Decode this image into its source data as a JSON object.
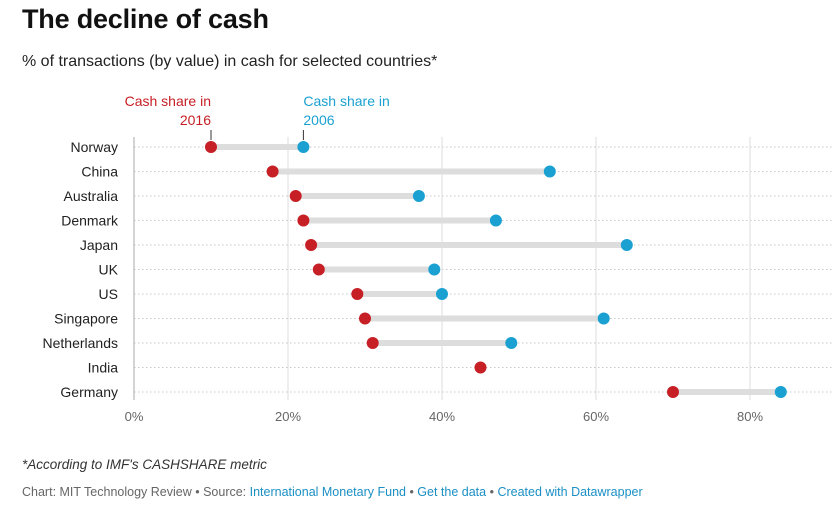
{
  "header": {
    "title": "The decline of cash",
    "subtitle": "% of transactions (by value) in cash for selected countries*"
  },
  "chart_data": {
    "type": "dot",
    "categories": [
      "Norway",
      "China",
      "Australia",
      "Denmark",
      "Japan",
      "UK",
      "US",
      "Singapore",
      "Netherlands",
      "India",
      "Germany"
    ],
    "series": [
      {
        "name": "Cash share in 2016",
        "color": "#c62026",
        "values": [
          10,
          18,
          21,
          22,
          23,
          24,
          29,
          30,
          31,
          45,
          70
        ]
      },
      {
        "name": "Cash share in 2006",
        "color": "#1aa1d1",
        "values": [
          22,
          54,
          37,
          47,
          64,
          39,
          40,
          61,
          49,
          null,
          84
        ]
      }
    ],
    "xlim": [
      0,
      90
    ],
    "xticks": [
      0,
      20,
      40,
      60,
      80
    ],
    "xtick_labels": [
      "0%",
      "20%",
      "40%",
      "60%",
      "80%"
    ],
    "annotations": [
      {
        "series": 0,
        "text_line1": "Cash share in",
        "text_line2": "2016"
      },
      {
        "series": 1,
        "text_line1": "Cash share in",
        "text_line2": "2006"
      }
    ],
    "connector_color": "#dddddd",
    "grid": true
  },
  "footer": {
    "note": "*According to IMF's CASHSHARE metric",
    "credit_prefix": "Chart: MIT Technology Review • Source: ",
    "source_link": "International Monetary Fund",
    "sep1": " • ",
    "data_link": "Get the data",
    "sep2": " • ",
    "dw_link": "Created with Datawrapper"
  }
}
